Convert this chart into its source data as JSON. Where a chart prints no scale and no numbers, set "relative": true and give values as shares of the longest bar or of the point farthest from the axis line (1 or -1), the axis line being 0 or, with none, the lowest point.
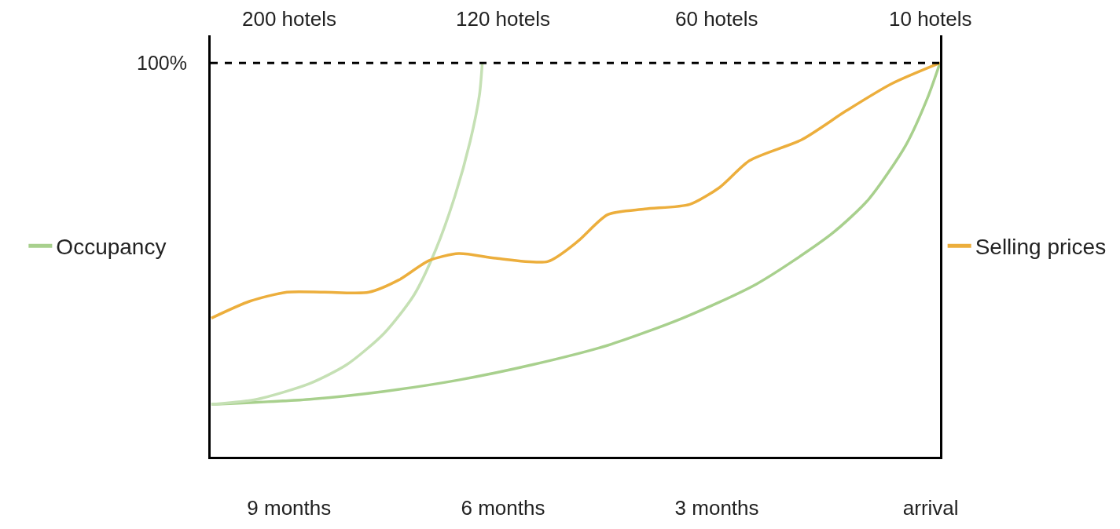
{
  "chart_data": {
    "type": "line",
    "relative": true,
    "xlim": [
      -10.1,
      0.13
    ],
    "xticks": [
      {
        "value": -9,
        "label": "9 months"
      },
      {
        "value": -6,
        "label": "6 months"
      },
      {
        "value": -3,
        "label": "3 months"
      },
      {
        "value": 0,
        "label": "arrival"
      }
    ],
    "annotations": [
      "200 hotels",
      "120 hotels",
      "60 hotels",
      "10 hotels"
    ],
    "series": [
      {
        "name": "Occupancy",
        "color": "#a8d08d",
        "x": [
          -10.09,
          -8.71,
          -7.67,
          -6.62,
          -5.58,
          -4.53,
          -3.48,
          -2.44,
          -1.39,
          -0.87,
          -0.35,
          -0.03,
          0.13
        ],
        "values": [
          0.133,
          0.146,
          0.166,
          0.195,
          0.234,
          0.283,
          0.352,
          0.439,
          0.566,
          0.654,
          0.791,
          0.918,
          1
        ]
      },
      {
        "color": "#c5e0b4",
        "x": [
          -10.09,
          -9.45,
          -8.71,
          -8.19,
          -7.67,
          -7.25,
          -6.94,
          -6.67,
          -6.46,
          -6.33,
          -6.29
        ],
        "values": [
          0.133,
          0.146,
          0.186,
          0.234,
          0.313,
          0.41,
          0.527,
          0.664,
          0.801,
          0.918,
          1
        ]
      },
      {
        "name": "Selling prices",
        "color": "#ecae3c",
        "x": [
          -10.09,
          -9.55,
          -9.03,
          -8.5,
          -7.88,
          -7.46,
          -7.04,
          -6.62,
          -6.1,
          -5.37,
          -4.95,
          -4.53,
          -4.01,
          -3.38,
          -2.96,
          -2.54,
          -1.81,
          -1.18,
          -0.55,
          0.13
        ],
        "values": [
          0.352,
          0.395,
          0.418,
          0.418,
          0.418,
          0.449,
          0.498,
          0.516,
          0.504,
          0.496,
          0.547,
          0.615,
          0.629,
          0.641,
          0.684,
          0.752,
          0.805,
          0.879,
          0.947,
          1
        ]
      }
    ],
    "ref_lines": [
      {
        "axis": "y",
        "value": 1,
        "label": "100%",
        "color": "#000000",
        "line_style": "dashed"
      }
    ],
    "legend": "left",
    "marker": "none",
    "line_style": "solid"
  }
}
